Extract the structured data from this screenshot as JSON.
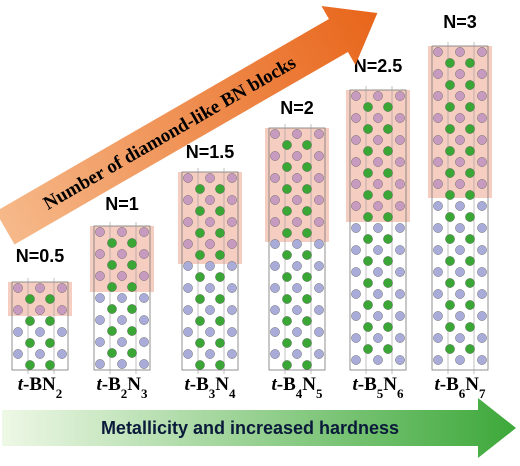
{
  "arrow_top": {
    "label": "Number of diamond-like BN blocks"
  },
  "arrow_bottom": {
    "label": "Metallicity and increased hardness"
  },
  "structures": [
    {
      "n_label": "N=0.5",
      "formula": [
        "t",
        "-BN",
        "2"
      ]
    },
    {
      "n_label": "N=1",
      "formula": [
        "t",
        "-B",
        "2",
        "N",
        "3"
      ]
    },
    {
      "n_label": "N=1.5",
      "formula": [
        "t",
        "-B",
        "3",
        "N",
        "4"
      ]
    },
    {
      "n_label": "N=2",
      "formula": [
        "t",
        "-B",
        "4",
        "N",
        "5"
      ]
    },
    {
      "n_label": "N=2.5",
      "formula": [
        "t",
        "-B",
        "5",
        "N",
        "6"
      ]
    },
    {
      "n_label": "N=3",
      "formula": [
        "t",
        "-B",
        "6",
        "N",
        "7"
      ]
    }
  ]
}
